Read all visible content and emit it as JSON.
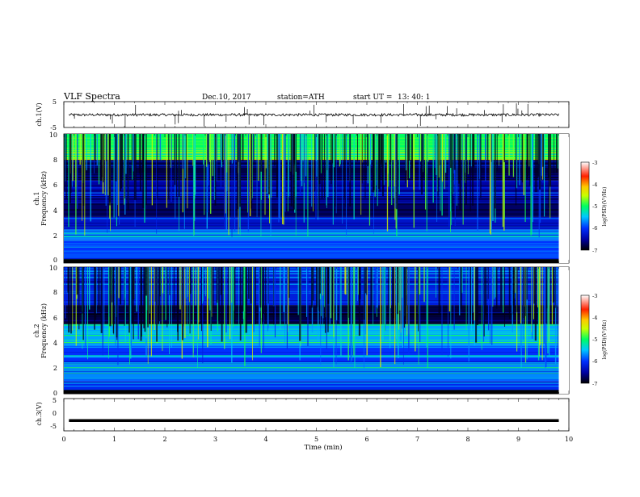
{
  "header": {
    "title": "VLF  Spectra",
    "date": "Dec.10, 2017",
    "station": "station=ATH",
    "start_label": "start  UT  =",
    "start_time": "13: 40: 1"
  },
  "chart_data": [
    {
      "type": "line",
      "id": "ch1-waveform",
      "ylabel": "ch.1(V)",
      "ylim": [
        -5,
        5
      ],
      "y_ticks": [
        "5",
        "-5"
      ],
      "xlim": [
        0,
        10
      ],
      "baseline": -0.1,
      "color": "#000000"
    },
    {
      "type": "heatmap",
      "id": "ch1-spectrogram",
      "ylabel_lines": [
        "ch.1",
        "Frequency  (kHz)"
      ],
      "ylim": [
        0,
        10
      ],
      "y_ticks": [
        "0",
        "2",
        "4",
        "6",
        "8",
        "10"
      ],
      "xlim": [
        0,
        10
      ],
      "data_xmax": 9.8,
      "colorbar": {
        "label": "log(PSD)(V²/Hz)",
        "range": [
          -7,
          -3
        ],
        "ticks": [
          "-3",
          "-4",
          "-5",
          "-6",
          "-7"
        ]
      },
      "bands": [
        {
          "f0": 0,
          "f1": 0.3,
          "level": -7.0
        },
        {
          "f0": 0.3,
          "f1": 1.0,
          "level": -5.9
        },
        {
          "f0": 1.0,
          "f1": 1.8,
          "level": -6.0
        },
        {
          "f0": 1.8,
          "f1": 2.6,
          "level": -5.7
        },
        {
          "f0": 2.6,
          "f1": 3.6,
          "level": -6.3
        },
        {
          "f0": 3.6,
          "f1": 5.2,
          "level": -6.7
        },
        {
          "f0": 5.2,
          "f1": 6.4,
          "level": -6.5
        },
        {
          "f0": 6.4,
          "f1": 8.0,
          "level": -6.8
        },
        {
          "f0": 8.0,
          "f1": 10.0,
          "level": -5.0
        }
      ]
    },
    {
      "type": "heatmap",
      "id": "ch2-spectrogram",
      "ylabel_lines": [
        "ch.2",
        "Frequency  (kHz)"
      ],
      "ylim": [
        0,
        10
      ],
      "y_ticks": [
        "0",
        "2",
        "4",
        "6",
        "8",
        "10"
      ],
      "xlim": [
        0,
        10
      ],
      "data_xmax": 9.8,
      "colorbar": {
        "label": "log(PSD)(V²/Hz)",
        "range": [
          -7,
          -3
        ],
        "ticks": [
          "-3",
          "-4",
          "-5",
          "-6",
          "-7"
        ]
      },
      "bands": [
        {
          "f0": 0,
          "f1": 0.3,
          "level": -7.0
        },
        {
          "f0": 0.3,
          "f1": 1.0,
          "level": -6.1
        },
        {
          "f0": 1.0,
          "f1": 2.3,
          "level": -5.7
        },
        {
          "f0": 2.3,
          "f1": 3.8,
          "level": -6.0
        },
        {
          "f0": 3.8,
          "f1": 5.5,
          "level": -5.6
        },
        {
          "f0": 5.5,
          "f1": 7.0,
          "level": -6.8
        },
        {
          "f0": 7.0,
          "f1": 10.0,
          "level": -6.2
        }
      ]
    },
    {
      "type": "line",
      "id": "ch3-waveform",
      "ylabel": "ch.3(V)",
      "ylim": [
        -5,
        5
      ],
      "y_ticks": [
        "5",
        "0",
        "-5"
      ],
      "xlim": [
        0,
        10
      ],
      "baseline": -1.8,
      "color": "#000000"
    }
  ],
  "x_axis": {
    "label": "Time  (min)",
    "ticks": [
      "0",
      "1",
      "2",
      "3",
      "4",
      "5",
      "6",
      "7",
      "8",
      "9",
      "10"
    ]
  }
}
